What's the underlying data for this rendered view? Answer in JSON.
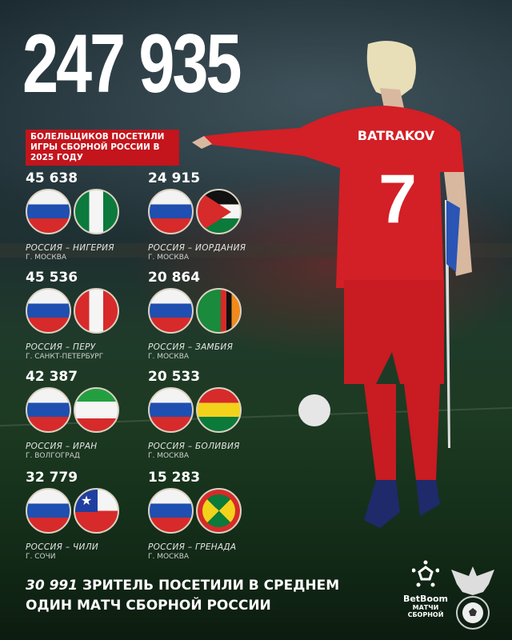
{
  "headline": {
    "total": "247 935",
    "banner": "БОЛЕЛЬЩИКОВ ПОСЕТИЛИ ИГРЫ СБОРНОЙ РОССИИ В 2025 ГОДУ"
  },
  "player": {
    "name": "BATRAKOV",
    "number": "7"
  },
  "board_text": "BetBoom",
  "matches": [
    {
      "attendance": "45 638",
      "match": "РОССИЯ – НИГЕРИЯ",
      "city": "Г. МОСКВА",
      "flags": [
        "russia",
        "nigeria"
      ]
    },
    {
      "attendance": "24 915",
      "match": "РОССИЯ – ИОРДАНИЯ",
      "city": "Г. МОСКВА",
      "flags": [
        "russia",
        "jordan"
      ]
    },
    {
      "attendance": "45 536",
      "match": "РОССИЯ – ПЕРУ",
      "city": "Г. САНКТ-ПЕТЕРБУРГ",
      "flags": [
        "russia",
        "peru"
      ]
    },
    {
      "attendance": "20 864",
      "match": "РОССИЯ – ЗАМБИЯ",
      "city": "Г. МОСКВА",
      "flags": [
        "russia",
        "zambia"
      ]
    },
    {
      "attendance": "42 387",
      "match": "РОССИЯ – ИРАН",
      "city": "Г. ВОЛГОГРАД",
      "flags": [
        "russia",
        "iran"
      ]
    },
    {
      "attendance": "20 533",
      "match": "РОССИЯ – БОЛИВИЯ",
      "city": "Г. МОСКВА",
      "flags": [
        "russia",
        "bolivia"
      ]
    },
    {
      "attendance": "32 779",
      "match": "РОССИЯ – ЧИЛИ",
      "city": "Г. СОЧИ",
      "flags": [
        "russia",
        "chile"
      ]
    },
    {
      "attendance": "15 283",
      "match": "РОССИЯ – ГРЕНАДА",
      "city": "Г. МОСКВА",
      "flags": [
        "russia",
        "grenada"
      ]
    }
  ],
  "footer": {
    "average": "30 991",
    "line1": "ЗРИТЕЛЬ ПОСЕТИЛИ В СРЕДНЕМ",
    "line2": "ОДИН МАТЧ СБОРНОЙ РОССИИ"
  },
  "logos": {
    "brand": "BetBoom",
    "sub1": "МАТЧИ",
    "sub2": "СБОРНОЙ"
  },
  "colors": {
    "accent": "#c4141c",
    "jersey": "#d31f26"
  }
}
